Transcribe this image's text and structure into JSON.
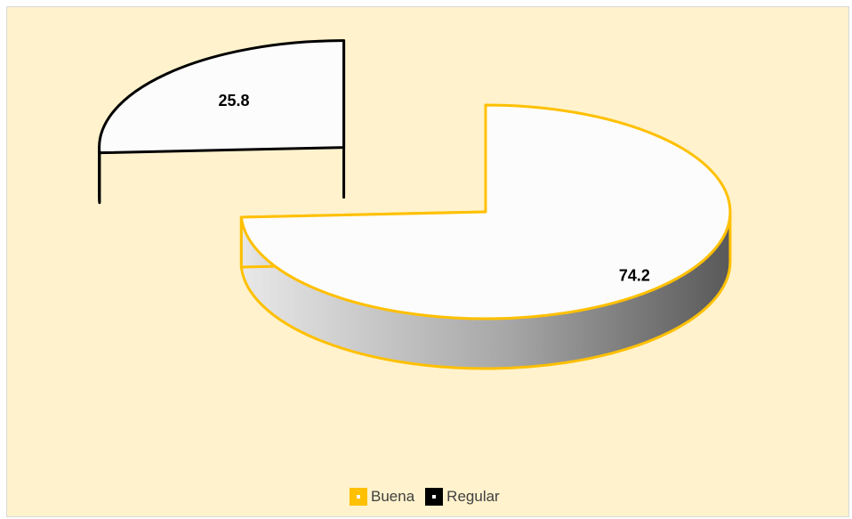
{
  "chart_data": {
    "type": "pie",
    "style": "3d-exploded",
    "categories": [
      "Buena",
      "Regular"
    ],
    "values": [
      74.2,
      25.8
    ],
    "data_labels": [
      "74.2",
      "25.8"
    ],
    "colors": {
      "Buena": "#ffc000",
      "Regular": "#000000"
    },
    "background": "#fff2cc",
    "legend_position": "bottom"
  }
}
